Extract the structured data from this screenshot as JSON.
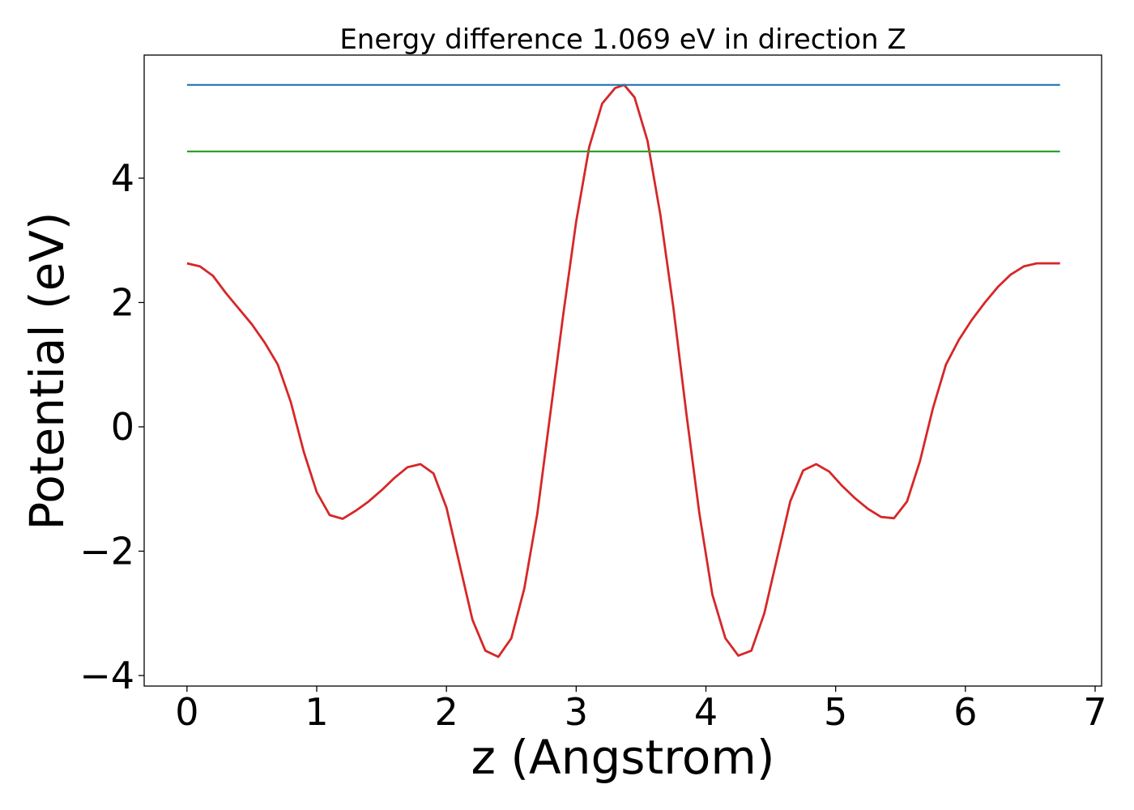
{
  "chart_data": {
    "type": "line",
    "title": "Energy difference 1.069 eV in direction Z",
    "xlabel": "z (Angstrom)",
    "ylabel": "Potential (eV)",
    "xlim": [
      -0.33,
      7.05
    ],
    "ylim": [
      -4.17,
      5.98
    ],
    "xticks": [
      0,
      1,
      2,
      3,
      4,
      5,
      6,
      7
    ],
    "yticks": [
      -4,
      -2,
      0,
      2,
      4
    ],
    "grid": false,
    "series": [
      {
        "color": "#d62728",
        "x": [
          0,
          0.1,
          0.2,
          0.3,
          0.4,
          0.5,
          0.6,
          0.7,
          0.8,
          0.9,
          1.0,
          1.1,
          1.2,
          1.3,
          1.4,
          1.5,
          1.6,
          1.7,
          1.8,
          1.9,
          2.0,
          2.1,
          2.2,
          2.3,
          2.4,
          2.5,
          2.6,
          2.7,
          2.8,
          2.9,
          3.0,
          3.1,
          3.2,
          3.3,
          3.37,
          3.45,
          3.55,
          3.65,
          3.75,
          3.85,
          3.95,
          4.05,
          4.15,
          4.25,
          4.35,
          4.45,
          4.55,
          4.65,
          4.75,
          4.85,
          4.95,
          5.05,
          5.15,
          5.25,
          5.35,
          5.45,
          5.55,
          5.65,
          5.75,
          5.85,
          5.95,
          6.05,
          6.15,
          6.25,
          6.35,
          6.45,
          6.55,
          6.65,
          6.73
        ],
        "y": [
          2.63,
          2.58,
          2.43,
          2.15,
          1.9,
          1.65,
          1.35,
          1.0,
          0.4,
          -0.4,
          -1.05,
          -1.42,
          -1.48,
          -1.35,
          -1.2,
          -1.02,
          -0.82,
          -0.65,
          -0.6,
          -0.75,
          -1.3,
          -2.2,
          -3.1,
          -3.6,
          -3.7,
          -3.4,
          -2.6,
          -1.4,
          0.2,
          1.8,
          3.3,
          4.5,
          5.2,
          5.45,
          5.5,
          5.3,
          4.6,
          3.4,
          1.9,
          0.2,
          -1.4,
          -2.7,
          -3.4,
          -3.68,
          -3.6,
          -3.0,
          -2.1,
          -1.2,
          -0.7,
          -0.6,
          -0.72,
          -0.95,
          -1.15,
          -1.32,
          -1.45,
          -1.47,
          -1.2,
          -0.55,
          0.3,
          1.0,
          1.4,
          1.72,
          2.0,
          2.25,
          2.45,
          2.58,
          2.63,
          2.63,
          2.63
        ]
      },
      {
        "color": "#1f77b4",
        "x": [
          0,
          6.73
        ],
        "y": [
          5.5,
          5.5
        ]
      },
      {
        "color": "#2ca02c",
        "x": [
          0,
          6.73
        ],
        "y": [
          4.43,
          4.43
        ]
      }
    ]
  }
}
